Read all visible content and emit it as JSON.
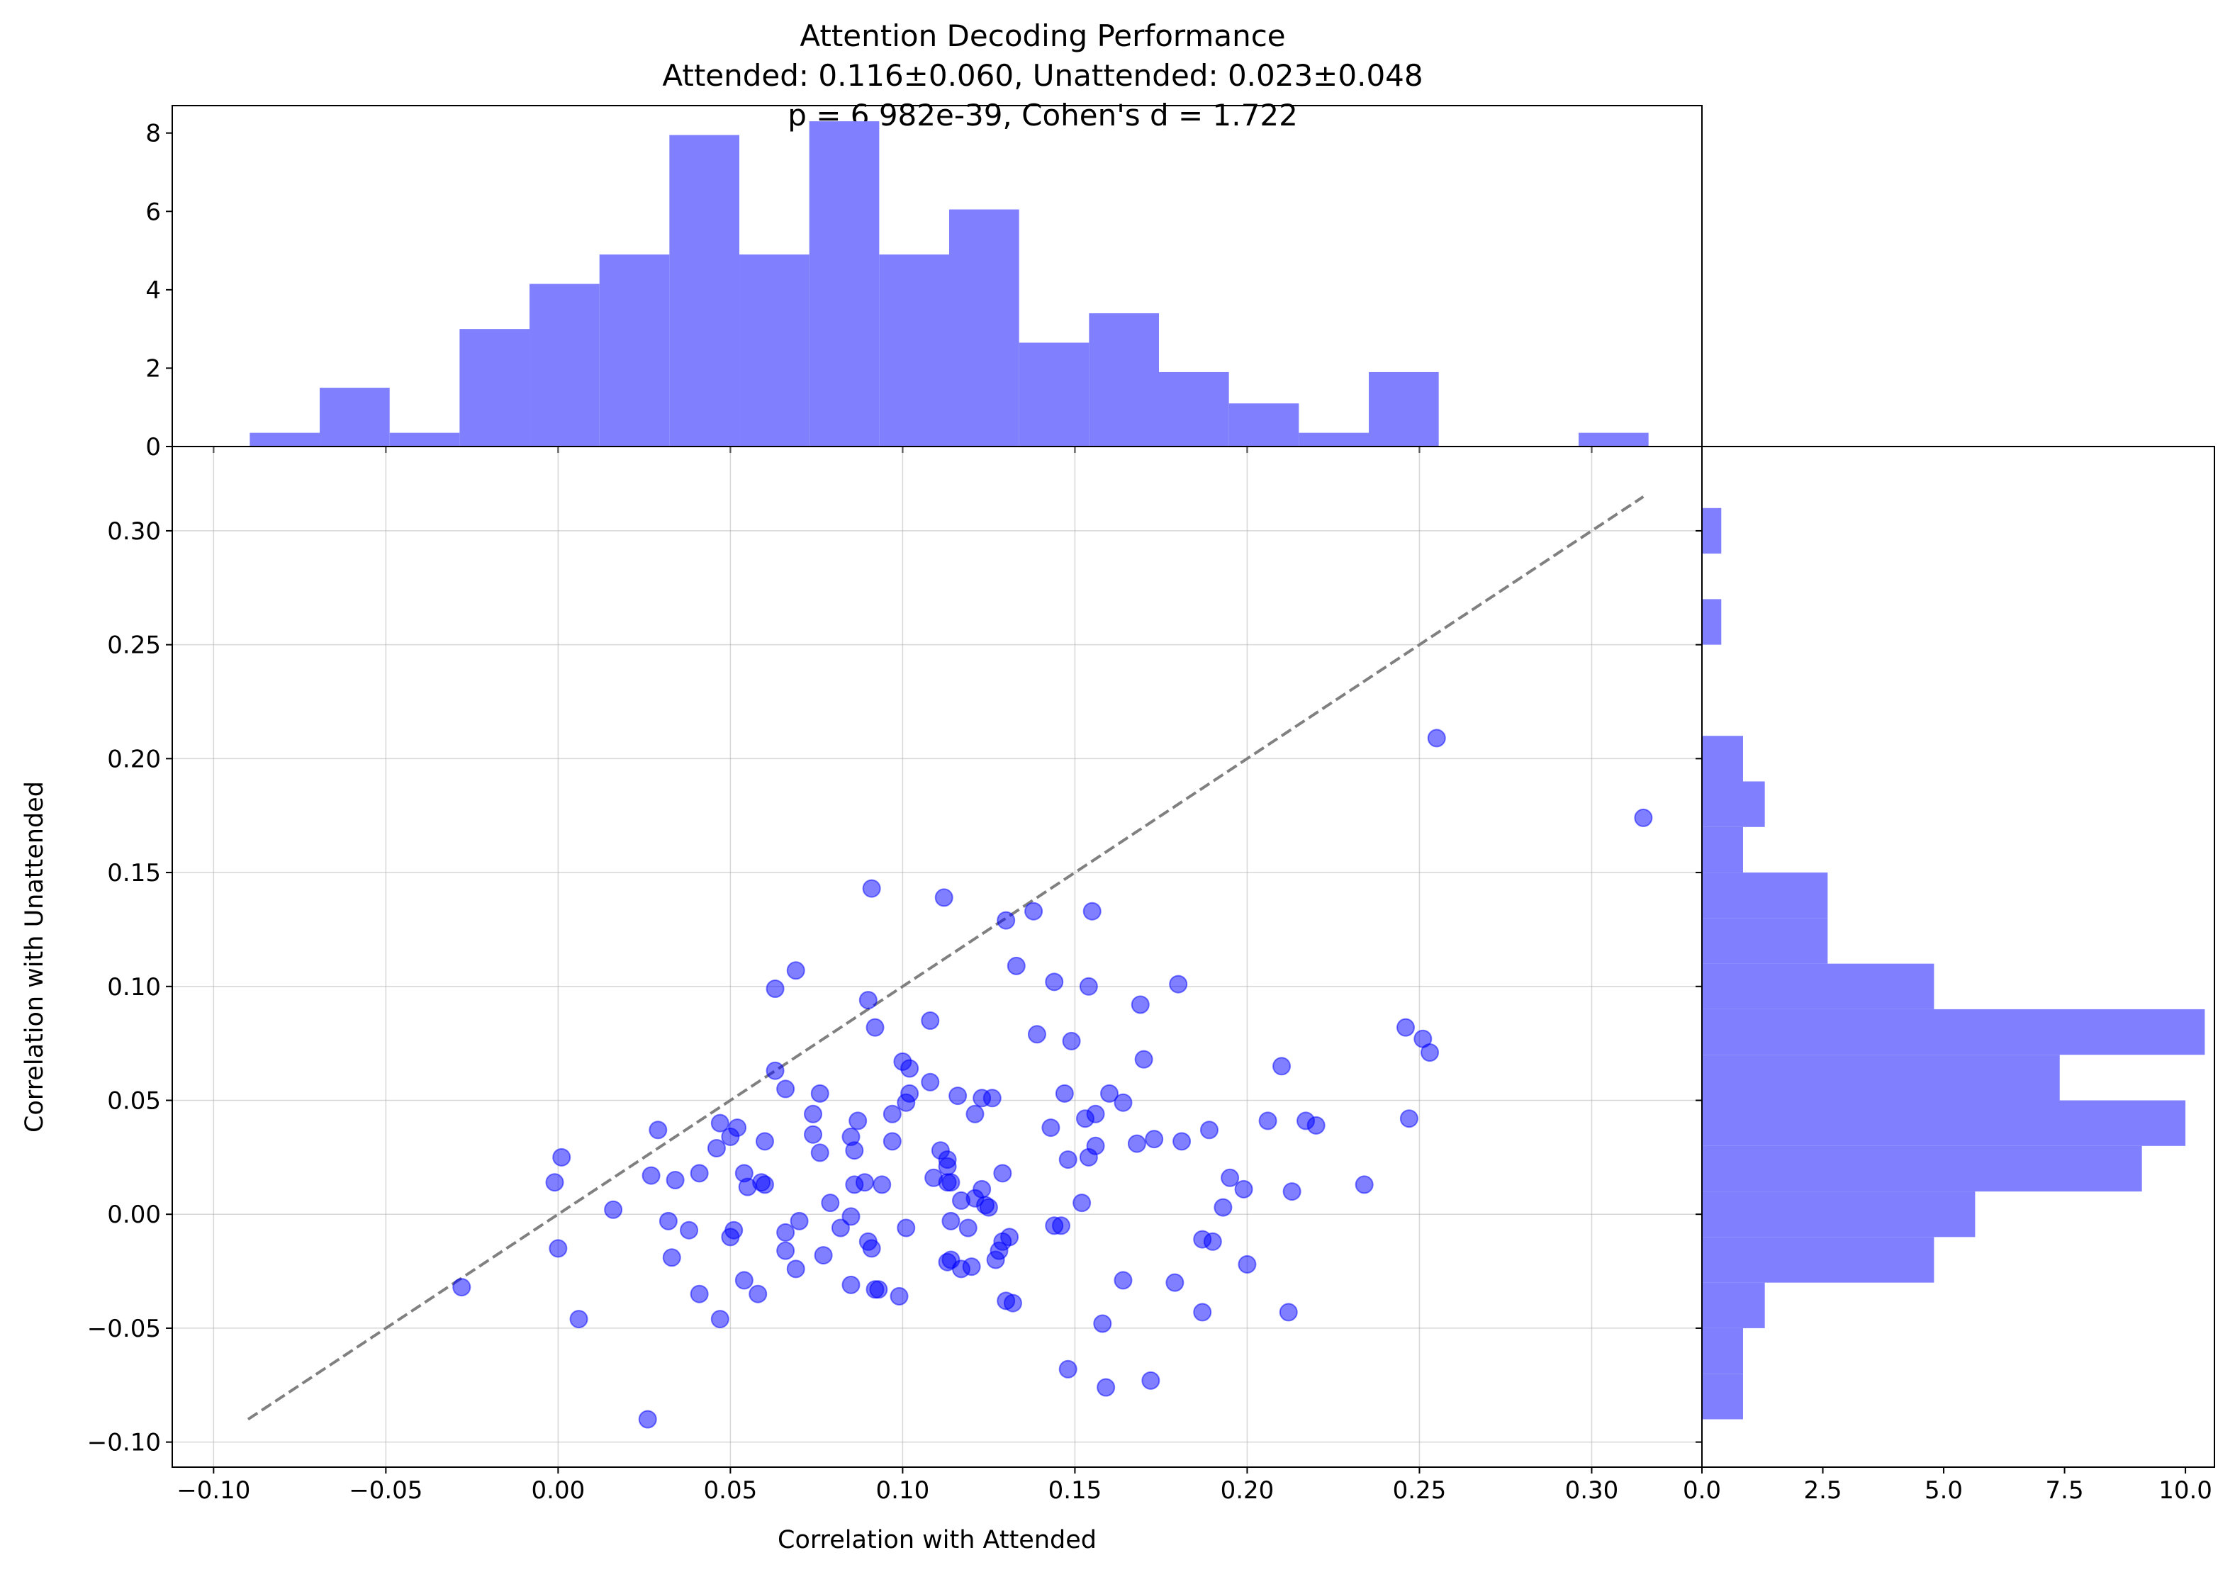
{
  "chart_data": {
    "type": "scatter",
    "title_lines": [
      "Attention Decoding Performance",
      "Attended: 0.116±0.060, Unattended: 0.023±0.048",
      "p = 6.982e-39, Cohen's d = 1.722"
    ],
    "xlabel": "Correlation with Attended",
    "ylabel": "Correlation with Unattended",
    "xlim": [
      -0.112,
      0.332
    ],
    "ylim": [
      -0.111,
      0.337
    ],
    "xticks": [
      -0.1,
      -0.05,
      0.0,
      0.05,
      0.1,
      0.15,
      0.2,
      0.25,
      0.3
    ],
    "xtick_labels": [
      "−0.10",
      "−0.05",
      "0.00",
      "0.05",
      "0.10",
      "0.15",
      "0.20",
      "0.25",
      "0.30"
    ],
    "yticks": [
      -0.1,
      -0.05,
      0.0,
      0.05,
      0.1,
      0.15,
      0.2,
      0.25,
      0.3
    ],
    "ytick_labels": [
      "−0.10",
      "−0.05",
      "0.00",
      "0.05",
      "0.10",
      "0.15",
      "0.20",
      "0.25",
      "0.30"
    ],
    "grid": true,
    "point_color": "#0000ff",
    "point_alpha": 0.5,
    "diagonal_line": {
      "from": [
        -0.09,
        -0.09
      ],
      "to": [
        0.315,
        0.315
      ],
      "color": "#808080",
      "style": "dashed"
    },
    "points": [
      [
        0.255,
        0.209
      ],
      [
        0.315,
        0.174
      ],
      [
        0.091,
        0.143
      ],
      [
        0.112,
        0.139
      ],
      [
        0.138,
        0.133
      ],
      [
        0.155,
        0.133
      ],
      [
        0.13,
        0.129
      ],
      [
        0.133,
        0.109
      ],
      [
        0.069,
        0.107
      ],
      [
        0.144,
        0.102
      ],
      [
        0.18,
        0.101
      ],
      [
        0.063,
        0.099
      ],
      [
        0.154,
        0.1
      ],
      [
        0.09,
        0.094
      ],
      [
        0.169,
        0.092
      ],
      [
        0.108,
        0.085
      ],
      [
        0.092,
        0.082
      ],
      [
        0.246,
        0.082
      ],
      [
        0.139,
        0.079
      ],
      [
        0.149,
        0.076
      ],
      [
        0.251,
        0.077
      ],
      [
        0.253,
        0.071
      ],
      [
        0.17,
        0.068
      ],
      [
        0.1,
        0.067
      ],
      [
        0.21,
        0.065
      ],
      [
        0.063,
        0.063
      ],
      [
        0.102,
        0.064
      ],
      [
        0.108,
        0.058
      ],
      [
        0.066,
        0.055
      ],
      [
        0.102,
        0.053
      ],
      [
        0.076,
        0.053
      ],
      [
        0.147,
        0.053
      ],
      [
        0.16,
        0.053
      ],
      [
        0.116,
        0.052
      ],
      [
        0.123,
        0.051
      ],
      [
        0.126,
        0.051
      ],
      [
        0.101,
        0.049
      ],
      [
        0.164,
        0.049
      ],
      [
        0.074,
        0.044
      ],
      [
        0.097,
        0.044
      ],
      [
        0.121,
        0.044
      ],
      [
        0.156,
        0.044
      ],
      [
        0.153,
        0.042
      ],
      [
        0.087,
        0.041
      ],
      [
        0.047,
        0.04
      ],
      [
        0.247,
        0.042
      ],
      [
        0.206,
        0.041
      ],
      [
        0.217,
        0.041
      ],
      [
        0.22,
        0.039
      ],
      [
        0.143,
        0.038
      ],
      [
        0.052,
        0.038
      ],
      [
        0.029,
        0.037
      ],
      [
        0.189,
        0.037
      ],
      [
        0.074,
        0.035
      ],
      [
        0.085,
        0.034
      ],
      [
        0.05,
        0.034
      ],
      [
        0.173,
        0.033
      ],
      [
        0.06,
        0.032
      ],
      [
        0.097,
        0.032
      ],
      [
        0.181,
        0.032
      ],
      [
        0.168,
        0.031
      ],
      [
        0.156,
        0.03
      ],
      [
        0.046,
        0.029
      ],
      [
        0.086,
        0.028
      ],
      [
        0.111,
        0.028
      ],
      [
        0.076,
        0.027
      ],
      [
        0.154,
        0.025
      ],
      [
        0.001,
        0.025
      ],
      [
        0.113,
        0.024
      ],
      [
        0.148,
        0.024
      ],
      [
        0.113,
        0.021
      ],
      [
        0.054,
        0.018
      ],
      [
        0.041,
        0.018
      ],
      [
        0.129,
        0.018
      ],
      [
        0.027,
        0.017
      ],
      [
        0.109,
        0.016
      ],
      [
        0.195,
        0.016
      ],
      [
        0.034,
        0.015
      ],
      [
        0.055,
        0.012
      ],
      [
        0.059,
        0.014
      ],
      [
        0.06,
        0.013
      ],
      [
        0.113,
        0.014
      ],
      [
        0.114,
        0.014
      ],
      [
        0.086,
        0.013
      ],
      [
        0.089,
        0.014
      ],
      [
        0.094,
        0.013
      ],
      [
        0.234,
        0.013
      ],
      [
        -0.001,
        0.014
      ],
      [
        0.199,
        0.011
      ],
      [
        0.213,
        0.01
      ],
      [
        0.123,
        0.011
      ],
      [
        0.121,
        0.007
      ],
      [
        0.117,
        0.006
      ],
      [
        0.079,
        0.005
      ],
      [
        0.152,
        0.005
      ],
      [
        0.124,
        0.004
      ],
      [
        0.125,
        0.003
      ],
      [
        0.193,
        0.003
      ],
      [
        0.016,
        0.002
      ],
      [
        0.085,
        -0.001
      ],
      [
        0.07,
        -0.003
      ],
      [
        0.114,
        -0.003
      ],
      [
        0.032,
        -0.003
      ],
      [
        0.101,
        -0.006
      ],
      [
        0.038,
        -0.007
      ],
      [
        0.051,
        -0.007
      ],
      [
        0.082,
        -0.006
      ],
      [
        0.119,
        -0.006
      ],
      [
        0.144,
        -0.005
      ],
      [
        0.146,
        -0.005
      ],
      [
        0.05,
        -0.01
      ],
      [
        0.066,
        -0.008
      ],
      [
        0.131,
        -0.01
      ],
      [
        0.09,
        -0.012
      ],
      [
        0.187,
        -0.011
      ],
      [
        0.129,
        -0.012
      ],
      [
        0.19,
        -0.012
      ],
      [
        0.0,
        -0.015
      ],
      [
        0.066,
        -0.016
      ],
      [
        0.091,
        -0.015
      ],
      [
        0.128,
        -0.016
      ],
      [
        0.077,
        -0.018
      ],
      [
        0.033,
        -0.019
      ],
      [
        0.114,
        -0.02
      ],
      [
        0.127,
        -0.02
      ],
      [
        0.113,
        -0.021
      ],
      [
        0.12,
        -0.023
      ],
      [
        0.117,
        -0.024
      ],
      [
        0.069,
        -0.024
      ],
      [
        0.2,
        -0.022
      ],
      [
        0.054,
        -0.029
      ],
      [
        0.164,
        -0.029
      ],
      [
        0.179,
        -0.03
      ],
      [
        0.085,
        -0.031
      ],
      [
        -0.028,
        -0.032
      ],
      [
        0.092,
        -0.033
      ],
      [
        0.093,
        -0.033
      ],
      [
        0.058,
        -0.035
      ],
      [
        0.041,
        -0.035
      ],
      [
        0.099,
        -0.036
      ],
      [
        0.13,
        -0.038
      ],
      [
        0.132,
        -0.039
      ],
      [
        0.187,
        -0.043
      ],
      [
        0.212,
        -0.043
      ],
      [
        0.047,
        -0.046
      ],
      [
        0.006,
        -0.046
      ],
      [
        0.158,
        -0.048
      ],
      [
        0.148,
        -0.068
      ],
      [
        0.172,
        -0.073
      ],
      [
        0.159,
        -0.076
      ],
      [
        0.026,
        -0.09
      ]
    ]
  },
  "top_histogram": {
    "type": "bar",
    "bin_edges": [
      -0.0895,
      -0.0692,
      -0.0489,
      -0.0286,
      -0.0083,
      0.012,
      0.0323,
      0.0526,
      0.0729,
      0.0932,
      0.1135,
      0.1338,
      0.1541,
      0.1744,
      0.1947,
      0.215,
      0.2353,
      0.2556,
      0.2759,
      0.2962,
      0.3165
    ],
    "values": [
      0.35,
      1.5,
      0.35,
      3.0,
      4.15,
      4.9,
      7.95,
      4.9,
      8.3,
      4.9,
      6.05,
      2.65,
      3.4,
      1.9,
      1.1,
      0.35,
      1.9,
      0,
      0,
      0.35
    ],
    "ylim": [
      0,
      8.7
    ],
    "yticks": [
      0,
      2,
      4,
      6,
      8
    ],
    "ytick_labels": [
      "0",
      "2",
      "4",
      "6",
      "8"
    ],
    "color": "#8080ff"
  },
  "right_histogram": {
    "type": "bar",
    "orientation": "horizontal",
    "bin_edges": [
      -0.09,
      -0.07,
      -0.05,
      -0.03,
      -0.01,
      0.01,
      0.03,
      0.05,
      0.07,
      0.09,
      0.11,
      0.13,
      0.15,
      0.17,
      0.19,
      0.21,
      0.23,
      0.25,
      0.27,
      0.29,
      0.31
    ],
    "values": [
      0.85,
      0.85,
      1.3,
      4.8,
      5.65,
      9.1,
      10.0,
      7.4,
      10.4,
      4.8,
      2.6,
      2.6,
      0.85,
      1.3,
      0.85,
      0,
      0,
      0.4,
      0,
      0.4
    ],
    "xlim": [
      0,
      10.6
    ],
    "xticks": [
      0,
      2.5,
      5.0,
      7.5,
      10.0
    ],
    "xtick_labels": [
      "0.0",
      "2.5",
      "5.0",
      "7.5",
      "10.0"
    ],
    "color": "#8080ff"
  }
}
